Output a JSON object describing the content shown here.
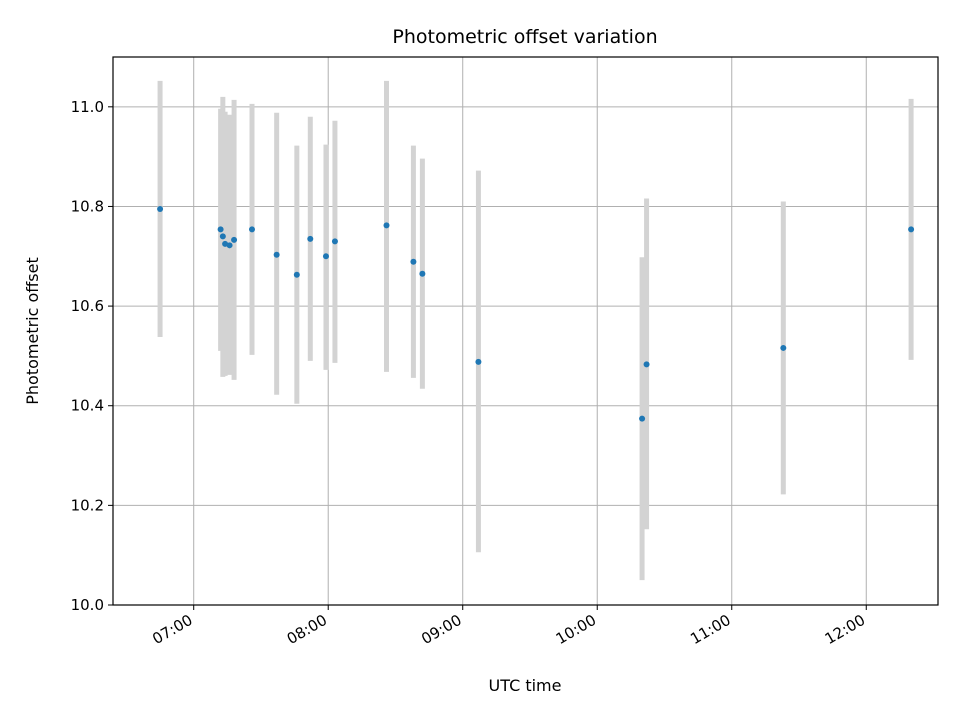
{
  "chart_data": {
    "type": "scatter",
    "title": "Photometric offset variation",
    "xlabel": "UTC time",
    "ylabel": "Photometric offset",
    "x_ticks": [
      "07:00",
      "08:00",
      "09:00",
      "10:00",
      "11:00",
      "12:00"
    ],
    "x_tick_minutes": [
      420,
      480,
      540,
      600,
      660,
      720
    ],
    "xlim_minutes": [
      384,
      752
    ],
    "y_ticks": [
      "10.0",
      "10.2",
      "10.4",
      "10.6",
      "10.8",
      "11.0"
    ],
    "y_tick_values": [
      10.0,
      10.2,
      10.4,
      10.6,
      10.8,
      11.0
    ],
    "ylim": [
      10.0,
      11.1
    ],
    "grid": true,
    "point_color": "#1f77b4",
    "errorbar_color": "#d3d3d3",
    "points": [
      {
        "t": "06:45",
        "y": 10.795,
        "low": 10.538,
        "high": 11.052
      },
      {
        "t": "07:12",
        "y": 10.754,
        "low": 10.51,
        "high": 10.996
      },
      {
        "t": "07:13",
        "y": 10.74,
        "low": 10.458,
        "high": 11.02
      },
      {
        "t": "07:14",
        "y": 10.725,
        "low": 10.46,
        "high": 10.99
      },
      {
        "t": "07:16",
        "y": 10.722,
        "low": 10.462,
        "high": 10.984
      },
      {
        "t": "07:18",
        "y": 10.733,
        "low": 10.452,
        "high": 11.014
      },
      {
        "t": "07:26",
        "y": 10.754,
        "low": 10.502,
        "high": 11.006
      },
      {
        "t": "07:37",
        "y": 10.703,
        "low": 10.422,
        "high": 10.988
      },
      {
        "t": "07:46",
        "y": 10.663,
        "low": 10.404,
        "high": 10.922
      },
      {
        "t": "07:52",
        "y": 10.735,
        "low": 10.49,
        "high": 10.98
      },
      {
        "t": "07:59",
        "y": 10.7,
        "low": 10.472,
        "high": 10.924
      },
      {
        "t": "08:03",
        "y": 10.73,
        "low": 10.486,
        "high": 10.972
      },
      {
        "t": "08:26",
        "y": 10.762,
        "low": 10.468,
        "high": 11.052
      },
      {
        "t": "08:38",
        "y": 10.689,
        "low": 10.456,
        "high": 10.922
      },
      {
        "t": "08:42",
        "y": 10.665,
        "low": 10.434,
        "high": 10.896
      },
      {
        "t": "09:07",
        "y": 10.488,
        "low": 10.106,
        "high": 10.872
      },
      {
        "t": "10:20",
        "y": 10.374,
        "low": 10.05,
        "high": 10.698
      },
      {
        "t": "10:22",
        "y": 10.483,
        "low": 10.152,
        "high": 10.816
      },
      {
        "t": "11:23",
        "y": 10.516,
        "low": 10.222,
        "high": 10.81
      },
      {
        "t": "12:20",
        "y": 10.754,
        "low": 10.492,
        "high": 11.016
      }
    ]
  }
}
